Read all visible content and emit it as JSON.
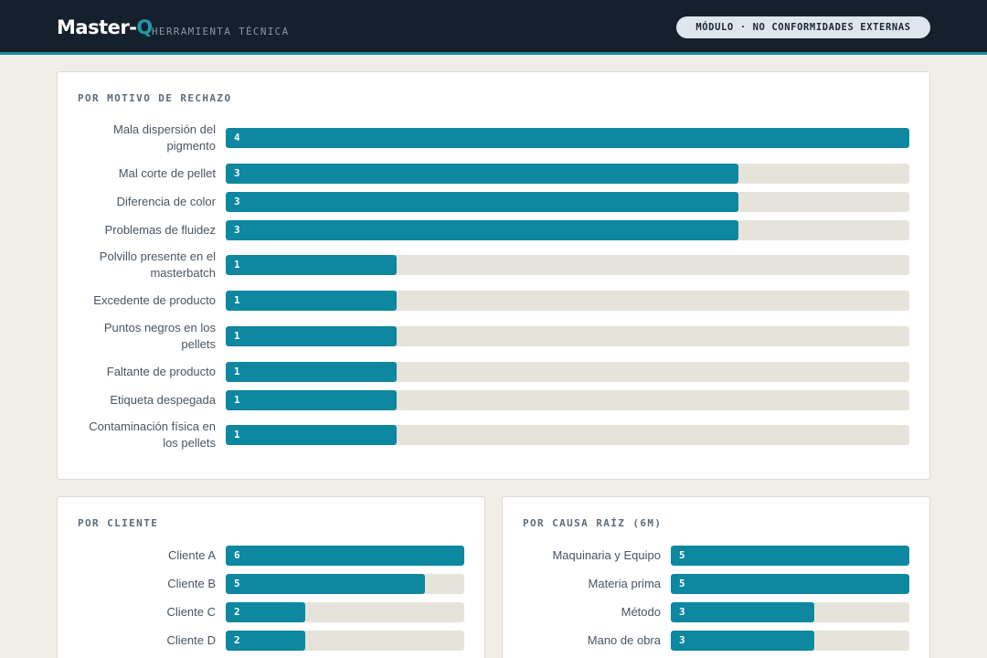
{
  "header": {
    "brand": "Master-",
    "brand_accent": "Q",
    "subtitle": "HERRAMIENTA TÉCNICA",
    "module_label": "MÓDULO · NO CONFORMIDADES EXTERNAS"
  },
  "colors": {
    "bar": "#0e87a0",
    "track": "#e6e3da",
    "header_bg": "#15202d",
    "accent": "#1f9aab"
  },
  "motivo": {
    "title": "POR MOTIVO DE RECHAZO",
    "max": 4,
    "items": [
      {
        "label": "Mala dispersión del pigmento",
        "value": 4
      },
      {
        "label": "Mal corte de pellet",
        "value": 3
      },
      {
        "label": "Diferencia de color",
        "value": 3
      },
      {
        "label": "Problemas de fluidez",
        "value": 3
      },
      {
        "label": "Polvillo presente en el masterbatch",
        "value": 1
      },
      {
        "label": "Excedente de producto",
        "value": 1
      },
      {
        "label": "Puntos negros en los pellets",
        "value": 1
      },
      {
        "label": "Faltante de producto",
        "value": 1
      },
      {
        "label": "Etiqueta despegada",
        "value": 1
      },
      {
        "label": "Contaminación física en los pellets",
        "value": 1
      }
    ]
  },
  "cliente": {
    "title": "POR CLIENTE",
    "max": 6,
    "items": [
      {
        "label": "Cliente A",
        "value": 6
      },
      {
        "label": "Cliente B",
        "value": 5
      },
      {
        "label": "Cliente C",
        "value": 2
      },
      {
        "label": "Cliente D",
        "value": 2
      }
    ]
  },
  "causa": {
    "title": "POR CAUSA RAÍZ (6M)",
    "max": 5,
    "items": [
      {
        "label": "Maquinaria y Equipo",
        "value": 5
      },
      {
        "label": "Materia prima",
        "value": 5
      },
      {
        "label": "Método",
        "value": 3
      },
      {
        "label": "Mano de obra",
        "value": 3
      }
    ]
  }
}
